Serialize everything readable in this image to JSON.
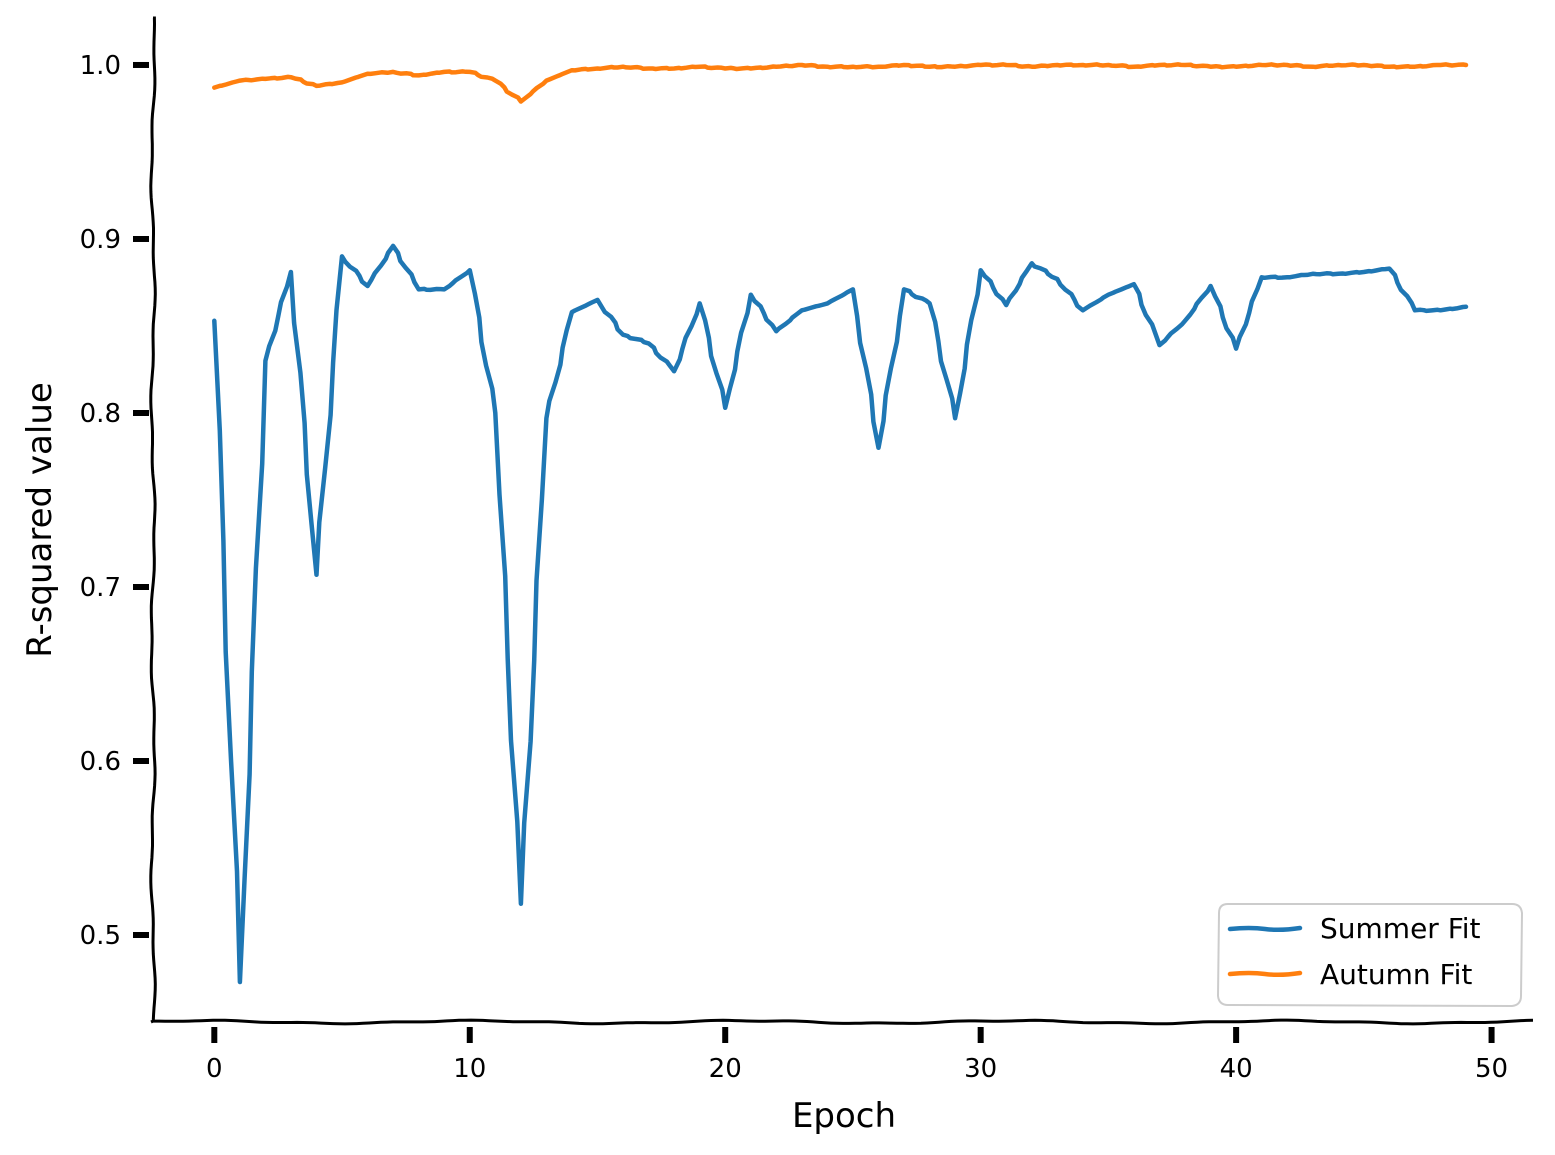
{
  "chart_data": {
    "type": "line",
    "xlabel": "Epoch",
    "ylabel": "R-squared value",
    "xlim": [
      -2.4,
      51.7
    ],
    "ylim": [
      0.45,
      1.027
    ],
    "xticks": [
      0,
      10,
      20,
      30,
      40,
      50
    ],
    "yticks": [
      0.5,
      0.6,
      0.7,
      0.8,
      0.9,
      1.0
    ],
    "xtick_labels": [
      "0",
      "10",
      "20",
      "30",
      "40",
      "50"
    ],
    "ytick_labels": [
      "0.5",
      "0.6",
      "0.7",
      "0.8",
      "0.9",
      "1.0"
    ],
    "grid": false,
    "legend_position": "lower-right",
    "x": [
      0,
      1,
      2,
      3,
      4,
      5,
      6,
      7,
      8,
      9,
      10,
      11,
      12,
      13,
      14,
      15,
      16,
      17,
      18,
      19,
      20,
      21,
      22,
      23,
      24,
      25,
      26,
      27,
      28,
      29,
      30,
      31,
      32,
      33,
      34,
      35,
      36,
      37,
      38,
      39,
      40,
      41,
      42,
      43,
      44,
      45,
      46,
      47,
      48,
      49
    ],
    "series": [
      {
        "name": "Summer Fit",
        "color": "#1f77b4",
        "values": [
          0.853,
          0.473,
          0.83,
          0.881,
          0.707,
          0.89,
          0.873,
          0.896,
          0.871,
          0.871,
          0.882,
          0.8,
          0.518,
          0.797,
          0.858,
          0.865,
          0.845,
          0.84,
          0.824,
          0.863,
          0.803,
          0.868,
          0.847,
          0.859,
          0.863,
          0.871,
          0.78,
          0.871,
          0.863,
          0.797,
          0.882,
          0.862,
          0.886,
          0.877,
          0.859,
          0.868,
          0.874,
          0.839,
          0.853,
          0.873,
          0.837,
          0.878,
          0.878,
          0.88,
          0.88,
          0.881,
          0.883,
          0.859,
          0.859,
          0.861
        ]
      },
      {
        "name": "Autumn Fit",
        "color": "#ff7f0e",
        "values": [
          0.987,
          0.991,
          0.992,
          0.993,
          0.988,
          0.99,
          0.995,
          0.996,
          0.994,
          0.996,
          0.996,
          0.991,
          0.979,
          0.991,
          0.997,
          0.998,
          0.999,
          0.998,
          0.998,
          0.999,
          0.998,
          0.998,
          0.999,
          1.0,
          0.999,
          0.999,
          0.999,
          1.0,
          0.999,
          0.999,
          1.0,
          1.0,
          0.999,
          1.0,
          1.0,
          1.0,
          0.999,
          1.0,
          1.0,
          0.999,
          0.999,
          1.0,
          1.0,
          0.999,
          1.0,
          1.0,
          0.999,
          0.999,
          1.0,
          1.0
        ]
      }
    ]
  }
}
